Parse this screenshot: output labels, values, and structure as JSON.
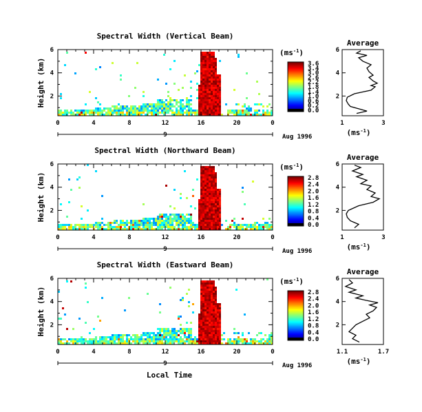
{
  "chart_data": [
    {
      "type": "heatmap",
      "title": "Spectral Width (Vertical Beam)",
      "ylabel": "Height (km)",
      "x_ticks": [
        "0",
        "4",
        "8",
        "12",
        "16",
        "20",
        "0"
      ],
      "y_ticks": [
        "6",
        "4",
        "2"
      ],
      "xlim": [
        0,
        24
      ],
      "ylim": [
        0.3,
        6
      ],
      "date_marker": "9",
      "date_label": "Aug 1996",
      "colorbar": {
        "unit": "(ms",
        "unit_sup": "-1",
        "unit_close": ")",
        "ticks": [
          "3.6",
          "3.4",
          "3.0",
          "2.6",
          "2.2",
          "1.8",
          "1.4",
          "1.0",
          "0.6",
          "0.2",
          "0.0"
        ]
      },
      "profile": {
        "title": "Average",
        "x_ticks": [
          "1",
          "3"
        ],
        "xlim": [
          1,
          3
        ],
        "y_ticks": [
          "6",
          "4",
          "2"
        ],
        "ylim": [
          0.3,
          6
        ],
        "xlabel": "(ms",
        "xlabel_sup": "-1",
        "xlabel_close": ")",
        "points": [
          [
            1.7,
            0.5
          ],
          [
            2.2,
            0.7
          ],
          [
            1.8,
            0.9
          ],
          [
            1.4,
            1.1
          ],
          [
            1.3,
            1.3
          ],
          [
            1.2,
            1.6
          ],
          [
            1.25,
            1.9
          ],
          [
            1.6,
            2.2
          ],
          [
            2.4,
            2.5
          ],
          [
            2.6,
            2.8
          ],
          [
            2.4,
            2.9
          ],
          [
            2.7,
            3.1
          ],
          [
            2.5,
            3.3
          ],
          [
            2.3,
            3.6
          ],
          [
            2.5,
            3.8
          ],
          [
            2.3,
            4.1
          ],
          [
            2.2,
            4.4
          ],
          [
            2.4,
            4.7
          ],
          [
            2.0,
            5.0
          ],
          [
            1.8,
            5.3
          ],
          [
            2.2,
            5.5
          ],
          [
            1.7,
            5.7
          ],
          [
            1.9,
            5.9
          ]
        ]
      }
    },
    {
      "type": "heatmap",
      "title": "Spectral Width (Northward Beam)",
      "ylabel": "Height (km)",
      "x_ticks": [
        "0",
        "4",
        "8",
        "12",
        "16",
        "20",
        "0"
      ],
      "y_ticks": [
        "6",
        "4",
        "2"
      ],
      "xlim": [
        0,
        24
      ],
      "ylim": [
        0.3,
        6
      ],
      "date_marker": "9",
      "date_label": "Aug 1996",
      "colorbar": {
        "unit": "(ms",
        "unit_sup": "-1",
        "unit_close": ")",
        "ticks": [
          "2.8",
          "2.4",
          "2.0",
          "1.6",
          "1.2",
          "0.8",
          "0.4",
          "0.0"
        ]
      },
      "profile": {
        "title": "Average",
        "x_ticks": [
          "1",
          "3"
        ],
        "xlim": [
          1,
          3
        ],
        "y_ticks": [
          "6",
          "4",
          "2"
        ],
        "ylim": [
          0.3,
          6
        ],
        "xlabel": "(ms",
        "xlabel_sup": "-1",
        "xlabel_close": ")",
        "points": [
          [
            1.6,
            0.5
          ],
          [
            1.8,
            0.8
          ],
          [
            1.4,
            1.1
          ],
          [
            1.25,
            1.4
          ],
          [
            1.2,
            1.7
          ],
          [
            1.3,
            2.0
          ],
          [
            1.8,
            2.4
          ],
          [
            2.5,
            2.7
          ],
          [
            2.8,
            3.0
          ],
          [
            2.4,
            3.2
          ],
          [
            2.6,
            3.5
          ],
          [
            2.2,
            3.8
          ],
          [
            2.4,
            4.1
          ],
          [
            1.9,
            4.3
          ],
          [
            2.2,
            4.6
          ],
          [
            1.7,
            4.9
          ],
          [
            2.0,
            5.1
          ],
          [
            1.5,
            5.4
          ],
          [
            1.9,
            5.7
          ],
          [
            1.6,
            5.9
          ]
        ]
      }
    },
    {
      "type": "heatmap",
      "title": "Spectral Width (Eastward Beam)",
      "ylabel": "Height (km)",
      "x_ticks": [
        "0",
        "4",
        "8",
        "12",
        "16",
        "20",
        "0"
      ],
      "y_ticks": [
        "6",
        "4",
        "2"
      ],
      "xlim": [
        0,
        24
      ],
      "ylim": [
        0.3,
        6
      ],
      "date_marker": "9",
      "date_label": "Aug 1996",
      "colorbar": {
        "unit": "(ms",
        "unit_sup": "-1",
        "unit_close": ")",
        "ticks": [
          "2.8",
          "2.4",
          "2.0",
          "1.6",
          "1.2",
          "0.8",
          "0.4",
          "0.0"
        ]
      },
      "profile": {
        "title": "Average",
        "x_ticks": [
          "1.1",
          "1.7"
        ],
        "xlim": [
          1.1,
          1.7
        ],
        "y_ticks": [
          "6",
          "4",
          "2"
        ],
        "ylim": [
          0.3,
          6
        ],
        "xlabel": "(ms",
        "xlabel_sup": "-1",
        "xlabel_close": ")",
        "points": [
          [
            1.35,
            0.5
          ],
          [
            1.25,
            0.8
          ],
          [
            1.3,
            1.1
          ],
          [
            1.2,
            1.4
          ],
          [
            1.25,
            1.7
          ],
          [
            1.3,
            2.0
          ],
          [
            1.4,
            2.3
          ],
          [
            1.5,
            2.6
          ],
          [
            1.45,
            2.9
          ],
          [
            1.55,
            3.2
          ],
          [
            1.6,
            3.5
          ],
          [
            1.5,
            3.7
          ],
          [
            1.62,
            3.9
          ],
          [
            1.45,
            4.1
          ],
          [
            1.3,
            4.3
          ],
          [
            1.4,
            4.5
          ],
          [
            1.2,
            4.8
          ],
          [
            1.3,
            5.0
          ],
          [
            1.15,
            5.3
          ],
          [
            1.25,
            5.6
          ],
          [
            1.2,
            5.9
          ]
        ]
      }
    }
  ],
  "footer": {
    "xlabel": "Local Time"
  }
}
